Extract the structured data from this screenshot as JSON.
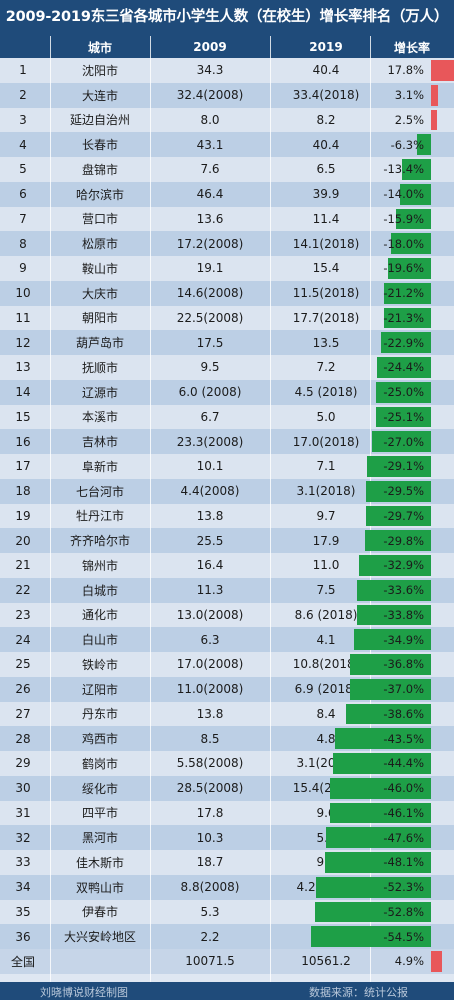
{
  "title": "2009-2019东三省各城市小学生人数（在校生）增长率排名（万人）",
  "footer": {
    "credit": "刘晓博说财经制图",
    "source": "数据来源：统计公报"
  },
  "chart_data": {
    "type": "table",
    "title": "2009-2019东三省各城市小学生人数（在校生）增长率排名（万人）",
    "columns": [
      "",
      "城市",
      "2009",
      "2019",
      "增长率"
    ],
    "rows": [
      {
        "rank": "1",
        "city": "沈阳市",
        "v2009": "34.3",
        "v2019": "40.4",
        "rate_label": "17.8%",
        "rate": 17.8
      },
      {
        "rank": "2",
        "city": "大连市",
        "v2009": "32.4(2008)",
        "v2019": "33.4(2018)",
        "rate_label": "3.1%",
        "rate": 3.1
      },
      {
        "rank": "3",
        "city": "延边自治州",
        "v2009": "8.0",
        "v2019": "8.2",
        "rate_label": "2.5%",
        "rate": 2.5
      },
      {
        "rank": "4",
        "city": "长春市",
        "v2009": "43.1",
        "v2019": "40.4",
        "rate_label": "-6.3%",
        "rate": -6.3
      },
      {
        "rank": "5",
        "city": "盘锦市",
        "v2009": "7.6",
        "v2019": "6.5",
        "rate_label": "-13.4%",
        "rate": -13.4
      },
      {
        "rank": "6",
        "city": "哈尔滨市",
        "v2009": "46.4",
        "v2019": "39.9",
        "rate_label": "-14.0%",
        "rate": -14.0
      },
      {
        "rank": "7",
        "city": "营口市",
        "v2009": "13.6",
        "v2019": "11.4",
        "rate_label": "-15.9%",
        "rate": -15.9
      },
      {
        "rank": "8",
        "city": "松原市",
        "v2009": "17.2(2008)",
        "v2019": "14.1(2018)",
        "rate_label": "-18.0%",
        "rate": -18.0
      },
      {
        "rank": "9",
        "city": "鞍山市",
        "v2009": "19.1",
        "v2019": "15.4",
        "rate_label": "-19.6%",
        "rate": -19.6
      },
      {
        "rank": "10",
        "city": "大庆市",
        "v2009": "14.6(2008)",
        "v2019": "11.5(2018)",
        "rate_label": "-21.2%",
        "rate": -21.2
      },
      {
        "rank": "11",
        "city": "朝阳市",
        "v2009": "22.5(2008)",
        "v2019": "17.7(2018)",
        "rate_label": "-21.3%",
        "rate": -21.3
      },
      {
        "rank": "12",
        "city": "葫芦岛市",
        "v2009": "17.5",
        "v2019": "13.5",
        "rate_label": "-22.9%",
        "rate": -22.9
      },
      {
        "rank": "13",
        "city": "抚顺市",
        "v2009": "9.5",
        "v2019": "7.2",
        "rate_label": "-24.4%",
        "rate": -24.4
      },
      {
        "rank": "14",
        "city": "辽源市",
        "v2009": "6.0 (2008)",
        "v2019": "4.5 (2018)",
        "rate_label": "-25.0%",
        "rate": -25.0
      },
      {
        "rank": "15",
        "city": "本溪市",
        "v2009": "6.7",
        "v2019": "5.0",
        "rate_label": "-25.1%",
        "rate": -25.1
      },
      {
        "rank": "16",
        "city": "吉林市",
        "v2009": "23.3(2008)",
        "v2019": "17.0(2018)",
        "rate_label": "-27.0%",
        "rate": -27.0
      },
      {
        "rank": "17",
        "city": "阜新市",
        "v2009": "10.1",
        "v2019": "7.1",
        "rate_label": "-29.1%",
        "rate": -29.1
      },
      {
        "rank": "18",
        "city": "七台河市",
        "v2009": "4.4(2008)",
        "v2019": "3.1(2018)",
        "rate_label": "-29.5%",
        "rate": -29.5
      },
      {
        "rank": "19",
        "city": "牡丹江市",
        "v2009": "13.8",
        "v2019": "9.7",
        "rate_label": "-29.7%",
        "rate": -29.7
      },
      {
        "rank": "20",
        "city": "齐齐哈尔市",
        "v2009": "25.5",
        "v2019": "17.9",
        "rate_label": "-29.8%",
        "rate": -29.8
      },
      {
        "rank": "21",
        "city": "锦州市",
        "v2009": "16.4",
        "v2019": "11.0",
        "rate_label": "-32.9%",
        "rate": -32.9
      },
      {
        "rank": "22",
        "city": "白城市",
        "v2009": "11.3",
        "v2019": "7.5",
        "rate_label": "-33.6%",
        "rate": -33.6
      },
      {
        "rank": "23",
        "city": "通化市",
        "v2009": "13.0(2008)",
        "v2019": "8.6 (2018)",
        "rate_label": "-33.8%",
        "rate": -33.8
      },
      {
        "rank": "24",
        "city": "白山市",
        "v2009": "6.3",
        "v2019": "4.1",
        "rate_label": "-34.9%",
        "rate": -34.9
      },
      {
        "rank": "25",
        "city": "铁岭市",
        "v2009": "17.0(2008)",
        "v2019": "10.8(2018)",
        "rate_label": "-36.8%",
        "rate": -36.8
      },
      {
        "rank": "26",
        "city": "辽阳市",
        "v2009": "11.0(2008)",
        "v2019": "6.9 (2018)",
        "rate_label": "-37.0%",
        "rate": -37.0
      },
      {
        "rank": "27",
        "city": "丹东市",
        "v2009": "13.8",
        "v2019": "8.4",
        "rate_label": "-38.6%",
        "rate": -38.6
      },
      {
        "rank": "28",
        "city": "鸡西市",
        "v2009": "8.5",
        "v2019": "4.8",
        "rate_label": "-43.5%",
        "rate": -43.5
      },
      {
        "rank": "29",
        "city": "鹤岗市",
        "v2009": "5.58(2008)",
        "v2019": "3.1(2018)",
        "rate_label": "-44.4%",
        "rate": -44.4
      },
      {
        "rank": "30",
        "city": "绥化市",
        "v2009": "28.5(2008)",
        "v2019": "15.4(2018)",
        "rate_label": "-46.0%",
        "rate": -46.0
      },
      {
        "rank": "31",
        "city": "四平市",
        "v2009": "17.8",
        "v2019": "9.6",
        "rate_label": "-46.1%",
        "rate": -46.1
      },
      {
        "rank": "32",
        "city": "黑河市",
        "v2009": "10.3",
        "v2019": "5.4",
        "rate_label": "-47.6%",
        "rate": -47.6
      },
      {
        "rank": "33",
        "city": "佳木斯市",
        "v2009": "18.7",
        "v2019": "9.7",
        "rate_label": "-48.1%",
        "rate": -48.1
      },
      {
        "rank": "34",
        "city": "双鸭山市",
        "v2009": "8.8(2008)",
        "v2019": "4.2(2018)",
        "rate_label": "-52.3%",
        "rate": -52.3
      },
      {
        "rank": "35",
        "city": "伊春市",
        "v2009": "5.3",
        "v2019": "2.5",
        "rate_label": "-52.8%",
        "rate": -52.8
      },
      {
        "rank": "36",
        "city": "大兴安岭地区",
        "v2009": "2.2",
        "v2019": "1.0",
        "rate_label": "-54.5%",
        "rate": -54.5
      }
    ],
    "total": {
      "rank": "全国",
      "city": "",
      "v2009": "10071.5",
      "v2019": "10561.2",
      "rate_label": "4.9%",
      "rate": 4.9
    },
    "colors": {
      "negative": "#1e9f47",
      "positive": "#e8575a",
      "header": "#1f4b7a"
    }
  }
}
